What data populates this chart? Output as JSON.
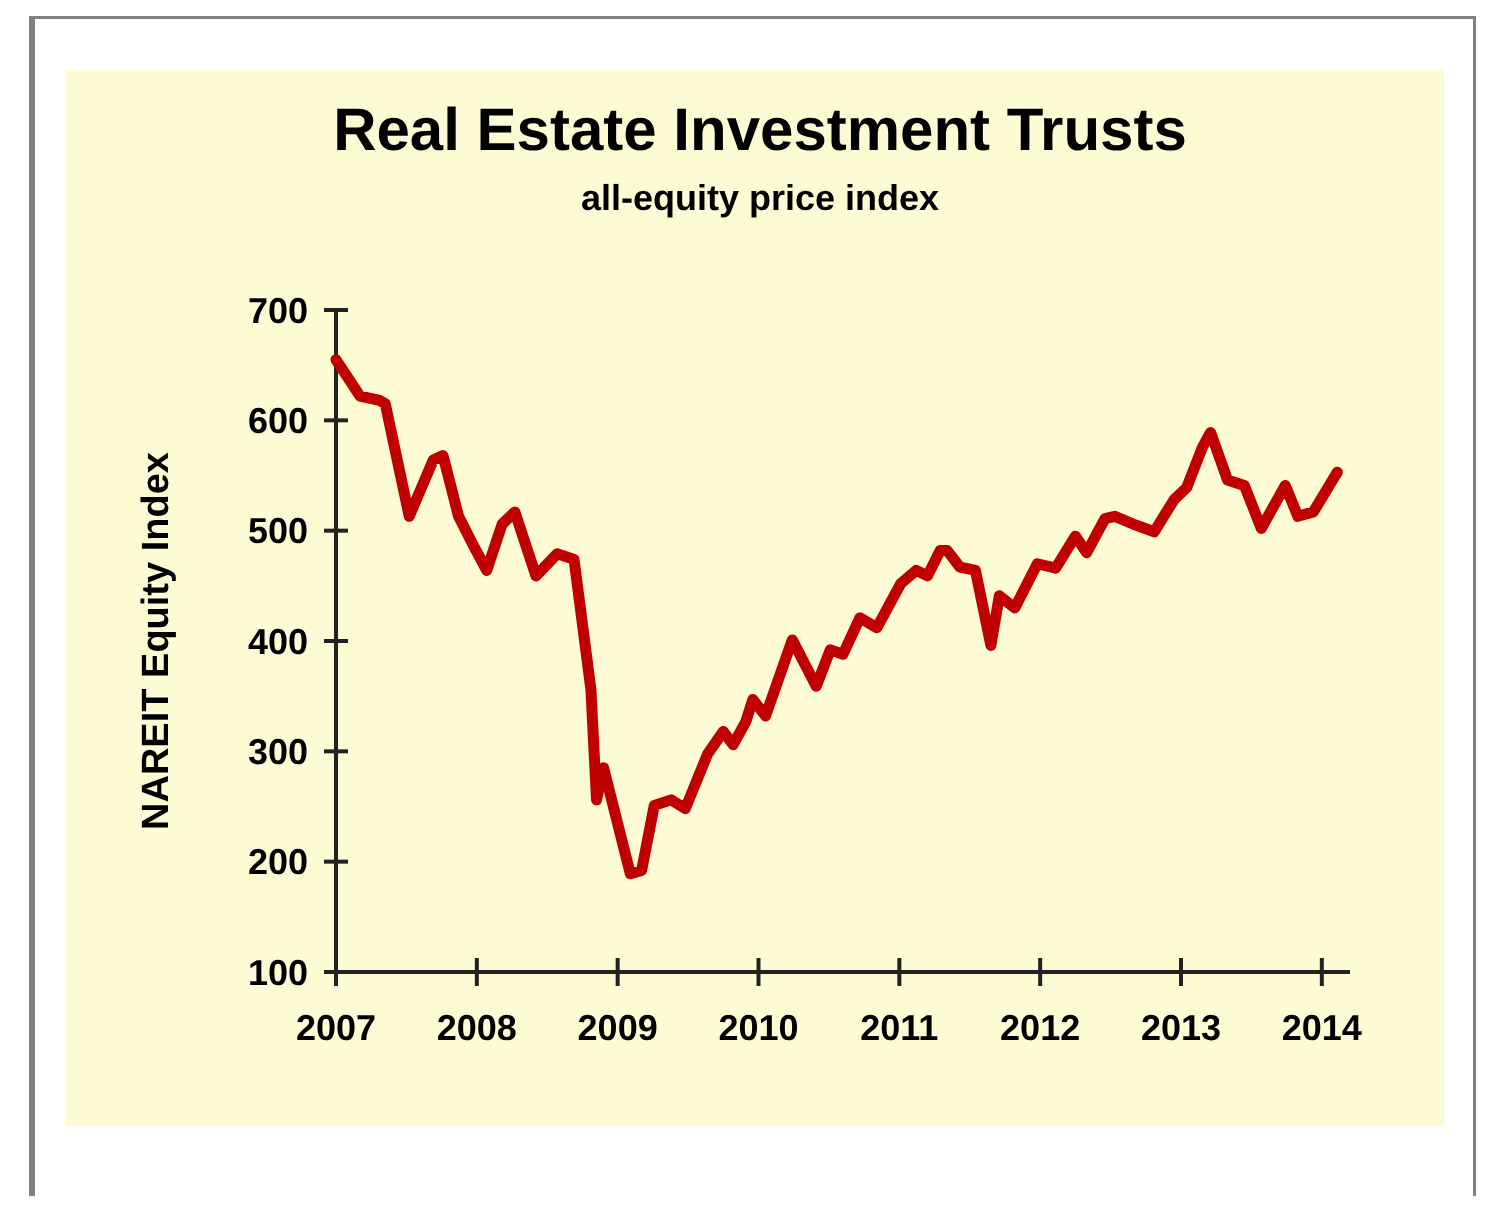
{
  "chart_data": {
    "type": "line",
    "title": "Real Estate Investment Trusts",
    "subtitle": "all-equity price index",
    "ylabel": "NAREIT Equity Index",
    "x": [
      2007.0,
      2007.17,
      2007.31,
      2007.35,
      2007.52,
      2007.69,
      2007.76,
      2007.87,
      2007.97,
      2008.07,
      2008.18,
      2008.27,
      2008.42,
      2008.57,
      2008.69,
      2008.81,
      2008.85,
      2008.9,
      2009.09,
      2009.17,
      2009.26,
      2009.38,
      2009.48,
      2009.64,
      2009.75,
      2009.82,
      2009.91,
      2009.96,
      2010.05,
      2010.24,
      2010.41,
      2010.51,
      2010.6,
      2010.72,
      2010.84,
      2011.01,
      2011.12,
      2011.2,
      2011.29,
      2011.34,
      2011.43,
      2011.54,
      2011.65,
      2011.71,
      2011.82,
      2011.98,
      2012.11,
      2012.25,
      2012.33,
      2012.46,
      2012.53,
      2012.66,
      2012.81,
      2012.95,
      2013.04,
      2013.15,
      2013.21,
      2013.33,
      2013.45,
      2013.57,
      2013.74,
      2013.83,
      2013.94,
      2014.11
    ],
    "series": [
      {
        "color": "#c00000",
        "values": [
          655,
          622,
          618,
          615,
          513,
          564,
          568,
          513,
          488,
          464,
          506,
          517,
          459,
          479,
          474,
          356,
          256,
          285,
          189,
          192,
          251,
          256,
          248,
          298,
          318,
          306,
          327,
          347,
          332,
          401,
          359,
          392,
          388,
          421,
          412,
          452,
          464,
          459,
          482,
          482,
          467,
          464,
          396,
          441,
          430,
          470,
          466,
          495,
          480,
          511,
          513,
          506,
          499,
          528,
          539,
          575,
          589,
          546,
          541,
          502,
          541,
          513,
          517,
          553
        ]
      }
    ],
    "xlim": [
      2007,
      2014.2
    ],
    "xticks": [
      2007,
      2008,
      2009,
      2010,
      2011,
      2012,
      2013,
      2014
    ],
    "ylim": [
      100,
      700
    ],
    "yticks": [
      100,
      200,
      300,
      400,
      500,
      600,
      700
    ],
    "grid": false,
    "marker": "none",
    "line_style": "solid"
  }
}
